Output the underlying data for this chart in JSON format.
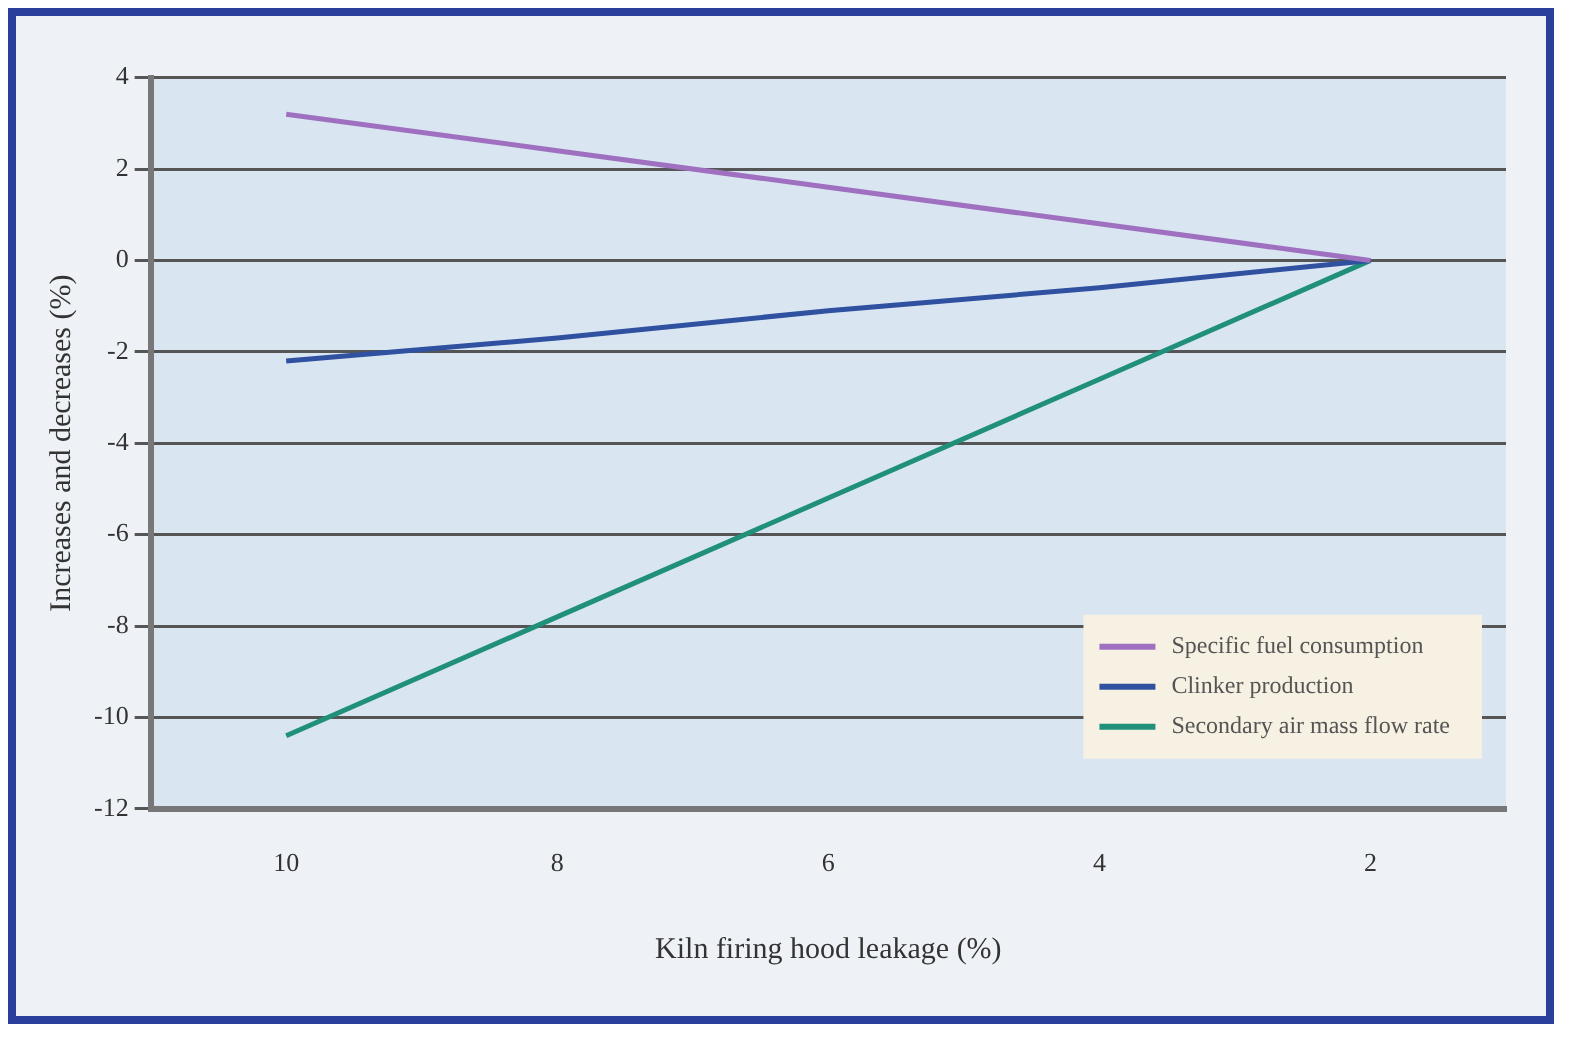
{
  "chart_data": {
    "type": "line",
    "xlabel": "Kiln firing hood leakage (%)",
    "ylabel": "Increases and decreases (%)",
    "categories": [
      "10",
      "8",
      "6",
      "4",
      "2"
    ],
    "series": [
      {
        "name": "Specific fuel consumption",
        "color": "#a070c0",
        "values": [
          3.2,
          2.4,
          1.6,
          0.8,
          0
        ]
      },
      {
        "name": "Clinker production",
        "color": "#3050a0",
        "values": [
          -2.2,
          -1.7,
          -1.1,
          -0.6,
          0
        ]
      },
      {
        "name": "Secondary air mass flow rate",
        "color": "#20907a",
        "values": [
          -10.4,
          -7.8,
          -5.2,
          -2.6,
          0
        ]
      }
    ],
    "ylim": [
      -12,
      4
    ],
    "yticks": [
      -12,
      -10,
      -8,
      -6,
      -4,
      -2,
      0,
      2,
      4
    ],
    "grid": "y",
    "legend": "bottom right",
    "marker": "none",
    "line_style": "solid"
  }
}
